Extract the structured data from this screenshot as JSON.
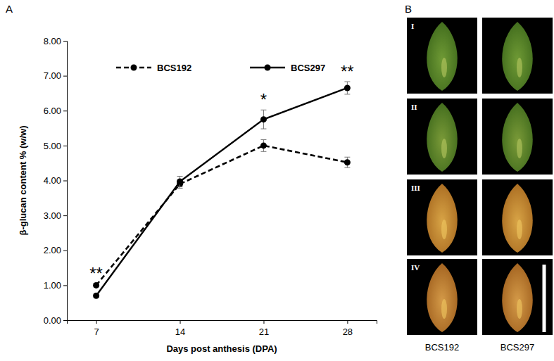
{
  "chart_data": [
    {
      "type": "line",
      "title": "A",
      "x_label": "Days post anthesis (DPA)",
      "y_label": "β-glucan content % (w/w)",
      "categories": [
        "7",
        "14",
        "21",
        "28"
      ],
      "series": [
        {
          "name": "BCS192",
          "color": "#000000",
          "line_style": "dashed",
          "marker": "circle",
          "values": [
            1.0,
            3.9,
            5.0,
            4.52
          ],
          "errors": [
            0.05,
            0.12,
            0.17,
            0.15
          ]
        },
        {
          "name": "BCS297",
          "color": "#000000",
          "line_style": "solid",
          "marker": "circle",
          "values": [
            0.7,
            3.97,
            5.75,
            6.65
          ],
          "errors": [
            0.05,
            0.15,
            0.27,
            0.18
          ]
        }
      ],
      "ylim": [
        0,
        8
      ],
      "yticks": [
        {
          "value": 0,
          "label": "0.00"
        },
        {
          "value": 1,
          "label": "1.00"
        },
        {
          "value": 2,
          "label": "2.00"
        },
        {
          "value": 3,
          "label": "3.00"
        },
        {
          "value": 4,
          "label": "4.00"
        },
        {
          "value": 5,
          "label": "5.00"
        },
        {
          "value": 6,
          "label": "6.00"
        },
        {
          "value": 7,
          "label": "7.00"
        },
        {
          "value": 8,
          "label": "8.00"
        }
      ],
      "grid": false,
      "legend": "top",
      "annotations": [
        {
          "text": "**",
          "category": "7"
        },
        {
          "text": "*",
          "category": "21"
        },
        {
          "text": "**",
          "category": "28"
        }
      ]
    },
    {
      "type": "image_grid",
      "title": "B",
      "categories": [
        "BCS192",
        "BCS297"
      ],
      "rows": [
        "I",
        "II",
        "III",
        "IV"
      ]
    }
  ]
}
